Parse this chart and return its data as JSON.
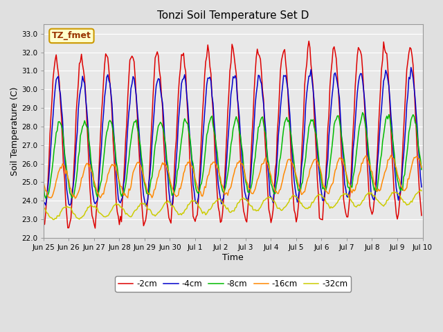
{
  "title": "Tonzi Soil Temperature Set D",
  "xlabel": "Time",
  "ylabel": "Soil Temperature (C)",
  "ylim": [
    22.0,
    33.5
  ],
  "yticks": [
    22.0,
    23.0,
    24.0,
    25.0,
    26.0,
    27.0,
    28.0,
    29.0,
    30.0,
    31.0,
    32.0,
    33.0
  ],
  "bg_color": "#e0e0e0",
  "plot_bg_color": "#e8e8e8",
  "series_labels": [
    "-2cm",
    "-4cm",
    "-8cm",
    "-16cm",
    "-32cm"
  ],
  "series_colors": [
    "#dd0000",
    "#0000cc",
    "#00bb00",
    "#ff8800",
    "#cccc00"
  ],
  "line_width": 1.1,
  "num_points": 360,
  "xtick_positions": [
    0,
    24,
    48,
    72,
    96,
    120,
    144,
    168,
    192,
    216,
    240,
    264,
    288,
    312,
    336,
    360
  ],
  "xtick_labels": [
    "Jun 25",
    "Jun 26",
    "Jun 27",
    "Jun 28",
    "Jun 29",
    "Jun 30",
    "Jul 1",
    "Jul 2",
    "Jul 3",
    "Jul 4",
    "Jul 5",
    "Jul 6",
    "Jul 7",
    "Jul 8",
    "Jul 9",
    "Jul 10"
  ],
  "annotation_text": "TZ_fmet",
  "legend_box_color": "#ffffcc",
  "legend_box_edge": "#cc9900",
  "params_2cm": {
    "mean": 27.2,
    "amp": 4.6,
    "phase": 0.0,
    "noise": 0.18,
    "trend": 0.6
  },
  "params_4cm": {
    "mean": 27.1,
    "amp": 3.4,
    "phase": 1.2,
    "noise": 0.12,
    "trend": 0.5
  },
  "params_8cm": {
    "mean": 26.2,
    "amp": 2.0,
    "phase": 3.0,
    "noise": 0.1,
    "trend": 0.4
  },
  "params_16cm": {
    "mean": 25.0,
    "amp": 0.9,
    "phase": 6.0,
    "noise": 0.07,
    "trend": 0.5
  },
  "params_32cm": {
    "mean": 23.3,
    "amp": 0.35,
    "phase": 10.0,
    "noise": 0.04,
    "trend": 0.9
  }
}
